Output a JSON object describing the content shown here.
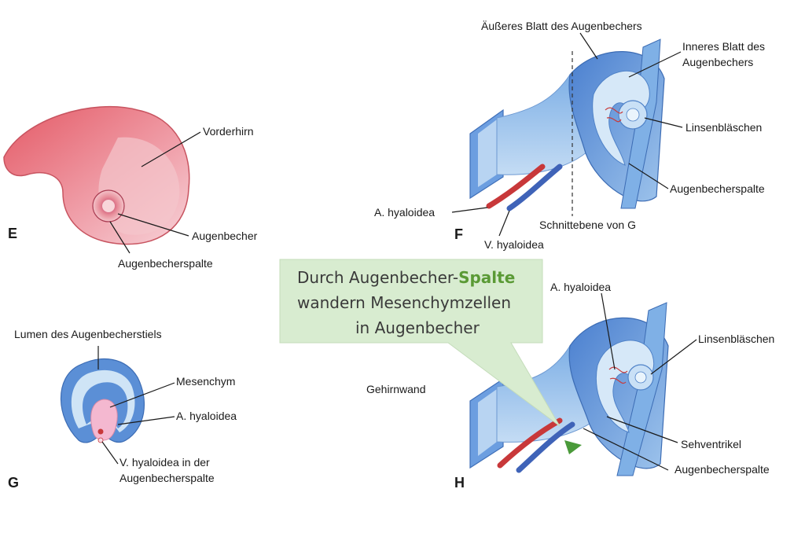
{
  "panels": {
    "E": {
      "letter": "E",
      "labels": {
        "vorderhirn": "Vorderhirn",
        "augenbecher": "Augenbecher",
        "augenbecherspalte": "Augenbecherspalte"
      }
    },
    "F": {
      "letter": "F",
      "labels": {
        "aeusseres_blatt": "Äußeres Blatt des Augenbechers",
        "inneres_blatt_1": "Inneres Blatt des",
        "inneres_blatt_2": "Augenbechers",
        "linsenblaeschen": "Linsenbläschen",
        "augenbecherspalte": "Augenbecherspalte",
        "a_hyaloidea": "A. hyaloidea",
        "v_hyaloidea": "V. hyaloidea",
        "schnittebene": "Schnittebene von G"
      }
    },
    "G": {
      "letter": "G",
      "labels": {
        "lumen": "Lumen des Augenbecherstiels",
        "mesenchym": "Mesenchym",
        "a_hyaloidea": "A. hyaloidea",
        "v_hyaloidea_1": "V. hyaloidea in der",
        "v_hyaloidea_2": "Augenbecherspalte"
      }
    },
    "H": {
      "letter": "H",
      "labels": {
        "a_hyaloidea": "A. hyaloidea",
        "linsenblaeschen": "Linsenbläschen",
        "gehirnwand": "Gehirnwand",
        "sehventrikel": "Sehventrikel",
        "augenbecherspalte": "Augenbecherspalte"
      }
    }
  },
  "callout": {
    "line1_prefix": "Durch Augenbecher-",
    "line1_highlight": "Spalte",
    "line2": "wandern Mesenchymzellen",
    "line3": "in Augenbecher"
  },
  "colors": {
    "brain_pink": "#e8707a",
    "cup_blue": "#5b8fd6",
    "cup_light": "#cfe4f6",
    "artery_red": "#d33a3a",
    "vein_blue": "#3f63b8",
    "callout_bg": "#d8ecd0",
    "highlight_green": "#5a9a35"
  }
}
